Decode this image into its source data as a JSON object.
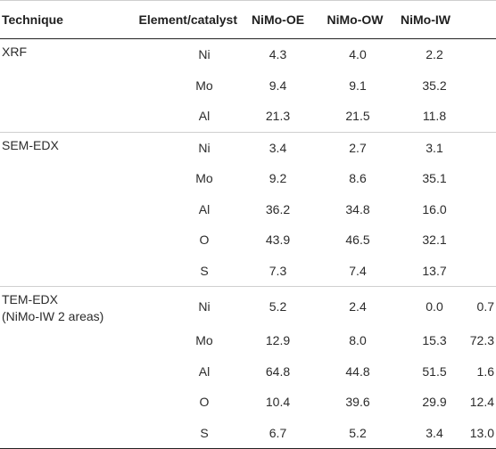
{
  "headers": [
    "Technique",
    "Element/catalyst",
    "NiMo-OE",
    "NiMo-OW",
    "NiMo-IW"
  ],
  "groups": [
    {
      "technique": "XRF",
      "technique_sub": "",
      "rows": [
        {
          "element": "Ni",
          "oe": "4.3",
          "ow": "4.0",
          "iw": "2.2",
          "iw2": ""
        },
        {
          "element": "Mo",
          "oe": "9.4",
          "ow": "9.1",
          "iw": "35.2",
          "iw2": ""
        },
        {
          "element": "Al",
          "oe": "21.3",
          "ow": "21.5",
          "iw": "11.8",
          "iw2": ""
        }
      ]
    },
    {
      "technique": "SEM-EDX",
      "technique_sub": "",
      "rows": [
        {
          "element": "Ni",
          "oe": "3.4",
          "ow": "2.7",
          "iw": "3.1",
          "iw2": ""
        },
        {
          "element": "Mo",
          "oe": "9.2",
          "ow": "8.6",
          "iw": "35.1",
          "iw2": ""
        },
        {
          "element": "Al",
          "oe": "36.2",
          "ow": "34.8",
          "iw": "16.0",
          "iw2": ""
        },
        {
          "element": "O",
          "oe": "43.9",
          "ow": "46.5",
          "iw": "32.1",
          "iw2": ""
        },
        {
          "element": "S",
          "oe": "7.3",
          "ow": "7.4",
          "iw": "13.7",
          "iw2": ""
        }
      ]
    },
    {
      "technique": "TEM-EDX",
      "technique_sub": "(NiMo-IW 2 areas)",
      "rows": [
        {
          "element": "Ni",
          "oe": "5.2",
          "ow": "2.4",
          "iw": "0.0",
          "iw2": "0.7"
        },
        {
          "element": "Mo",
          "oe": "12.9",
          "ow": "8.0",
          "iw": "15.3",
          "iw2": "72.3"
        },
        {
          "element": "Al",
          "oe": "64.8",
          "ow": "44.8",
          "iw": "51.5",
          "iw2": "1.6"
        },
        {
          "element": "O",
          "oe": "10.4",
          "ow": "39.6",
          "iw": "29.9",
          "iw2": "12.4"
        },
        {
          "element": "S",
          "oe": "6.7",
          "ow": "5.2",
          "iw": "3.4",
          "iw2": "13.0"
        }
      ]
    }
  ]
}
